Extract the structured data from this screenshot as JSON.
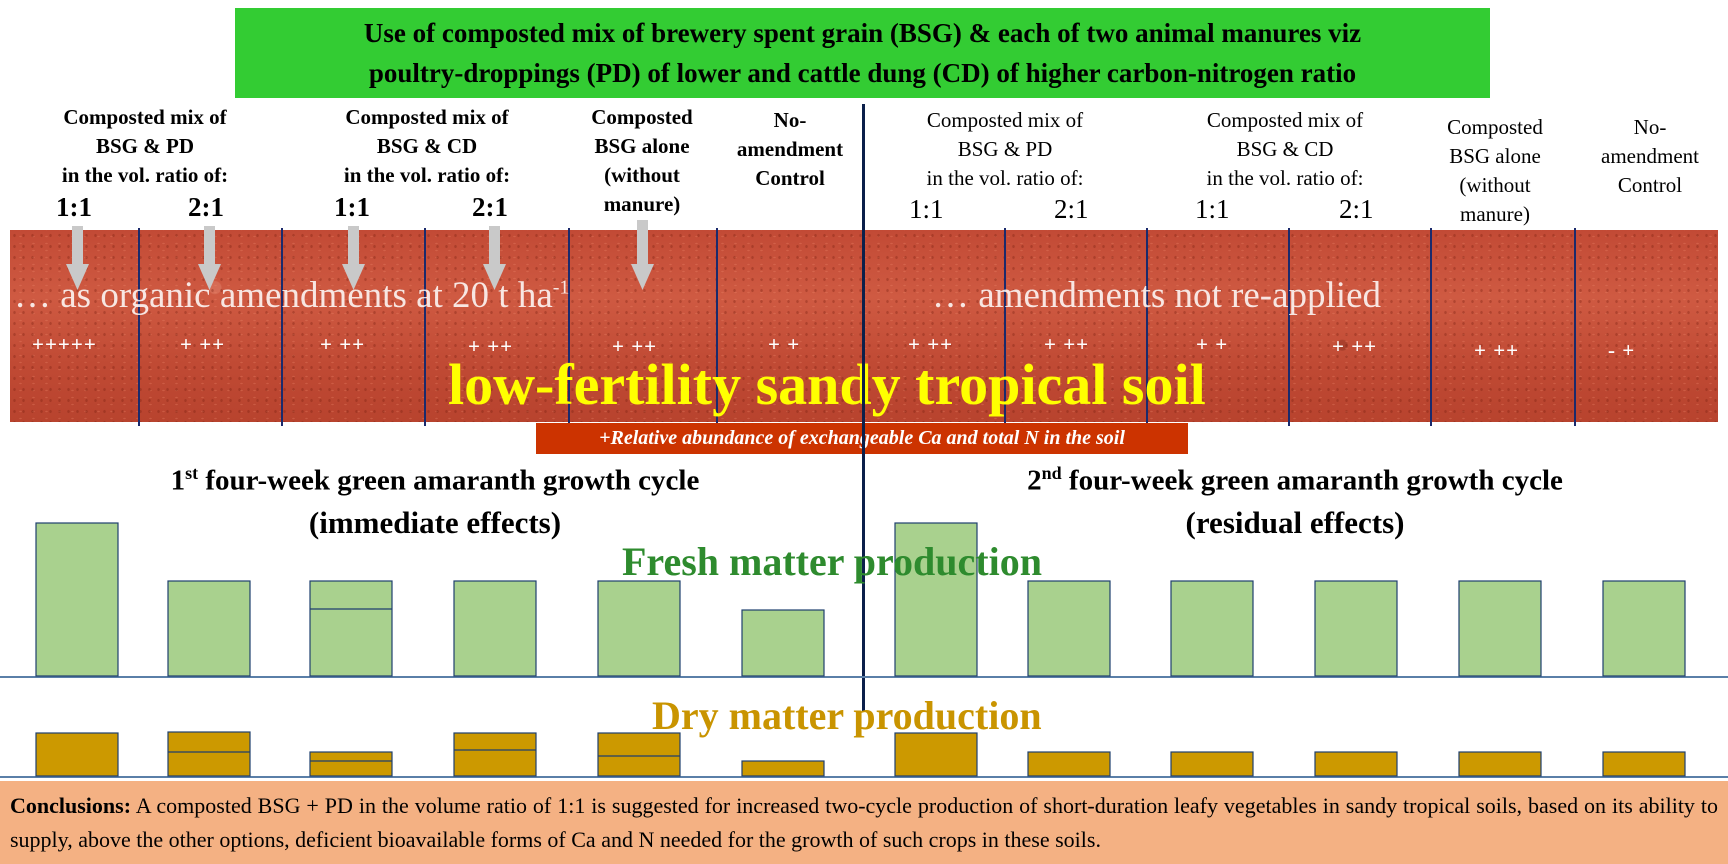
{
  "title": {
    "line1": "Use of composted mix of brewery spent grain (BSG) & each of two animal manures viz",
    "line2": "poultry-droppings (PD) of lower and cattle dung (CD) of higher carbon-nitrogen ratio"
  },
  "left_headers": {
    "pd": [
      "Composted mix of",
      "BSG & PD",
      "in the vol. ratio of:"
    ],
    "cd": [
      "Composted mix of",
      "BSG & CD",
      "in the vol. ratio of:"
    ],
    "bsg": [
      "Composted",
      "BSG alone",
      "(without",
      "manure)"
    ],
    "control": [
      "No-",
      "amendment",
      "Control"
    ],
    "ratios": [
      "1:1",
      "2:1",
      "1:1",
      "2:1"
    ]
  },
  "right_headers": {
    "pd": [
      "Composted mix of",
      "BSG & PD",
      "in the vol. ratio of:"
    ],
    "cd": [
      "Composted mix of",
      "BSG & CD",
      "in the vol. ratio of:"
    ],
    "bsg": [
      "Composted",
      "BSG alone",
      "(without",
      "manure)"
    ],
    "control": [
      "No-",
      "amendment",
      "Control"
    ],
    "ratios": [
      "1:1",
      "2:1",
      "1:1",
      "2:1"
    ]
  },
  "soil": {
    "left_overlay": "… as organic amendments at 20 t ha",
    "left_overlay_sup": "-1",
    "right_overlay": "… amendments not re-applied",
    "label": "low-fertility sandy tropical soil",
    "left_plus": [
      "+++++",
      "+ ++",
      "+ ++",
      "+ ++",
      "+ ++",
      "+ +"
    ],
    "right_plus": [
      "+ ++",
      "+ ++",
      "+ +",
      "+ ++",
      "+ ++",
      "- +"
    ]
  },
  "abundance_note": "+Relative abundance of exchangeable Ca and total N in the soil",
  "cycles": {
    "first": {
      "num": "1",
      "sup": "st",
      "text": " four-week green amaranth growth cycle",
      "effect": "(immediate  effects)"
    },
    "second": {
      "num": "2",
      "sup": "nd",
      "text": " four-week green amaranth growth cycle",
      "effect": "(residual  effects)"
    }
  },
  "fresh_label": "Fresh matter production",
  "dry_label": "Dry matter production",
  "chart_data": {
    "type": "bar",
    "categories": [
      "BSG+PD 1:1",
      "BSG+PD 2:1",
      "BSG+CD 1:1",
      "BSG+CD 2:1",
      "BSG alone",
      "Control"
    ],
    "series": [
      {
        "name": "Fresh matter production",
        "cycle": "1st",
        "values": [
          153,
          95,
          95,
          95,
          95,
          66
        ],
        "inner_line": [
          null,
          null,
          67,
          null,
          null,
          null
        ]
      },
      {
        "name": "Fresh matter production",
        "cycle": "2nd",
        "values": [
          153,
          95,
          95,
          95,
          95,
          95
        ],
        "inner_line": [
          null,
          null,
          null,
          null,
          null,
          null
        ]
      },
      {
        "name": "Dry matter production",
        "cycle": "1st",
        "values": [
          43,
          44,
          24,
          43,
          43,
          15
        ],
        "inner_line": [
          null,
          24,
          15,
          26,
          20,
          null
        ]
      },
      {
        "name": "Dry matter production",
        "cycle": "2nd",
        "values": [
          43,
          24,
          24,
          24,
          24,
          24
        ],
        "inner_line": [
          null,
          null,
          null,
          null,
          null,
          null
        ]
      }
    ],
    "colors": {
      "fresh": "#a9d18e",
      "dry": "#cc9900",
      "edge": "#1f3f6e"
    }
  },
  "conclusion": {
    "label": "Conclusions:",
    "text": " A composted BSG + PD in the volume ratio of 1:1 is suggested for increased two-cycle production of short-duration leafy vegetables in sandy tropical soils, based on its ability to supply, above the other options, deficient bioavailable forms of Ca and N needed for the growth of such crops in these soils."
  }
}
